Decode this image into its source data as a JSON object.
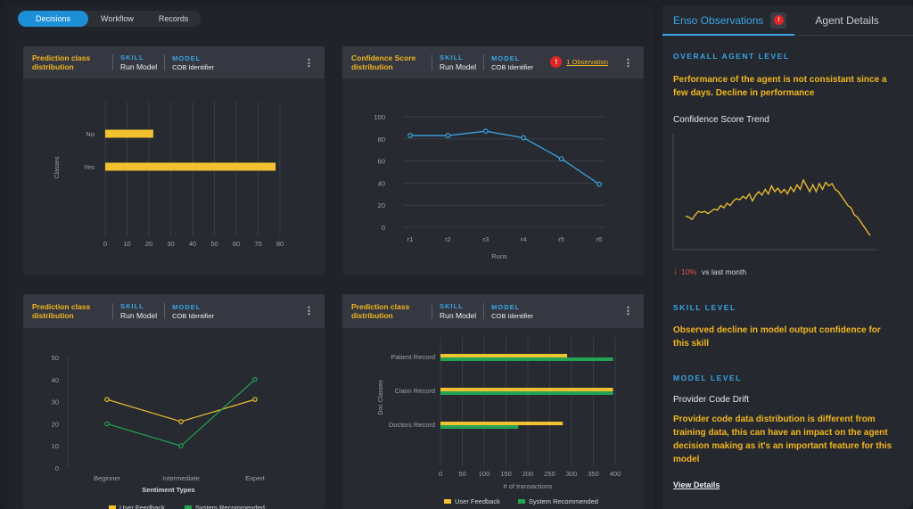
{
  "tabs": [
    "Decisions",
    "Workflow",
    "Records"
  ],
  "cards": [
    {
      "title": "Prediction class distribution",
      "skill_label": "SKILL",
      "skill": "Run Model",
      "model_label": "MODEL",
      "model": "COB Identifier"
    },
    {
      "title": "Confidence Score distribution",
      "skill_label": "SKILL",
      "skill": "Run Model",
      "model_label": "MODEL",
      "model": "COB Identifier",
      "observation": "1 Observation"
    },
    {
      "title": "Prediction class distribution",
      "skill_label": "SKILL",
      "skill": "Run Model",
      "model_label": "MODEL",
      "model": "COB Identifier"
    },
    {
      "title": "Prediction class distribution",
      "skill_label": "SKILL",
      "skill": "Run Model",
      "model_label": "MODEL",
      "model": "COB Identifier"
    }
  ],
  "chart_data": [
    {
      "type": "bar",
      "orientation": "horizontal",
      "categories": [
        "No",
        "Yes"
      ],
      "values": [
        22,
        78
      ],
      "ylabel": "Classes",
      "xlim": [
        0,
        80
      ],
      "xticks": [
        0,
        10,
        20,
        30,
        40,
        50,
        60,
        70,
        80
      ],
      "grid": true,
      "color": "#f2c12e"
    },
    {
      "type": "line",
      "categories": [
        "r1",
        "r2",
        "r3",
        "r4",
        "r5",
        "r6"
      ],
      "values": [
        83,
        83,
        87,
        81,
        62,
        39
      ],
      "xlabel": "Runs",
      "ylim": [
        0,
        100
      ],
      "yticks": [
        0,
        20,
        40,
        60,
        80,
        100
      ],
      "grid": true,
      "color": "#3aa6e6"
    },
    {
      "type": "line",
      "categories": [
        "Beginner",
        "Intermediate",
        "Expert"
      ],
      "xlabel": "Sentiment Types",
      "ylim": [
        0,
        50
      ],
      "yticks": [
        0,
        10,
        20,
        30,
        40,
        50
      ],
      "series": [
        {
          "name": "User Feedback",
          "values": [
            31,
            21,
            31
          ],
          "color": "#f2c12e"
        },
        {
          "name": "System Recommended",
          "values": [
            20,
            10,
            40
          ],
          "color": "#23a455"
        }
      ],
      "legend": "bottom"
    },
    {
      "type": "bar",
      "orientation": "horizontal",
      "categories": [
        "Patient Record",
        "Claim Record",
        "Doctors Record"
      ],
      "xlabel": "# of transactions",
      "ylabel": "Doc Classes",
      "xlim": [
        0,
        400
      ],
      "xticks": [
        0,
        50,
        100,
        150,
        200,
        250,
        300,
        350,
        400
      ],
      "series": [
        {
          "name": "User Feedback",
          "values": [
            290,
            395,
            280
          ],
          "color": "#f2c12e"
        },
        {
          "name": "System Recommended",
          "values": [
            395,
            395,
            178
          ],
          "color": "#23a455"
        }
      ],
      "legend": "bottom",
      "grid": true
    },
    {
      "type": "line",
      "values": [
        29,
        28,
        26,
        30,
        33,
        32,
        33,
        31,
        33,
        35,
        34,
        38,
        36,
        40,
        38,
        42,
        44,
        43,
        46,
        44,
        48,
        42,
        47,
        50,
        47,
        52,
        48,
        55,
        50,
        53,
        49,
        52,
        48,
        54,
        50,
        56,
        52,
        60,
        55,
        50,
        56,
        50,
        57,
        52,
        58,
        55,
        57,
        52,
        50,
        46,
        42,
        38,
        36,
        30,
        28,
        24,
        20,
        16,
        12
      ],
      "color": "#f2c12e",
      "ylim": [
        0,
        100
      ],
      "legend": "none"
    }
  ],
  "side": {
    "tab_observations": "Enso Observations",
    "tab_agent": "Agent Details",
    "overall_title": "OVERALL AGENT LEVEL",
    "overall_text": "Performance of the agent is not consistant since a few days. Decline in performance",
    "trend_title": "Confidence Score Trend",
    "delta_pct": "10%",
    "delta_text": "vs last month",
    "skill_title": "SKILL LEVEL",
    "skill_text": "Observed decline in model output confidence for this skill",
    "model_title": "MODEL LEVEL",
    "model_sub": "Provider Code Drift",
    "model_text": "Provider code data distribution is different from training data, this can have an impact on the agent decision making as it's an important feature for this model",
    "view_details": "View Details"
  },
  "colors": {
    "accent": "#3aa6e6",
    "highlight": "#f2b61e",
    "alert": "#e02424",
    "green": "#23a455"
  }
}
